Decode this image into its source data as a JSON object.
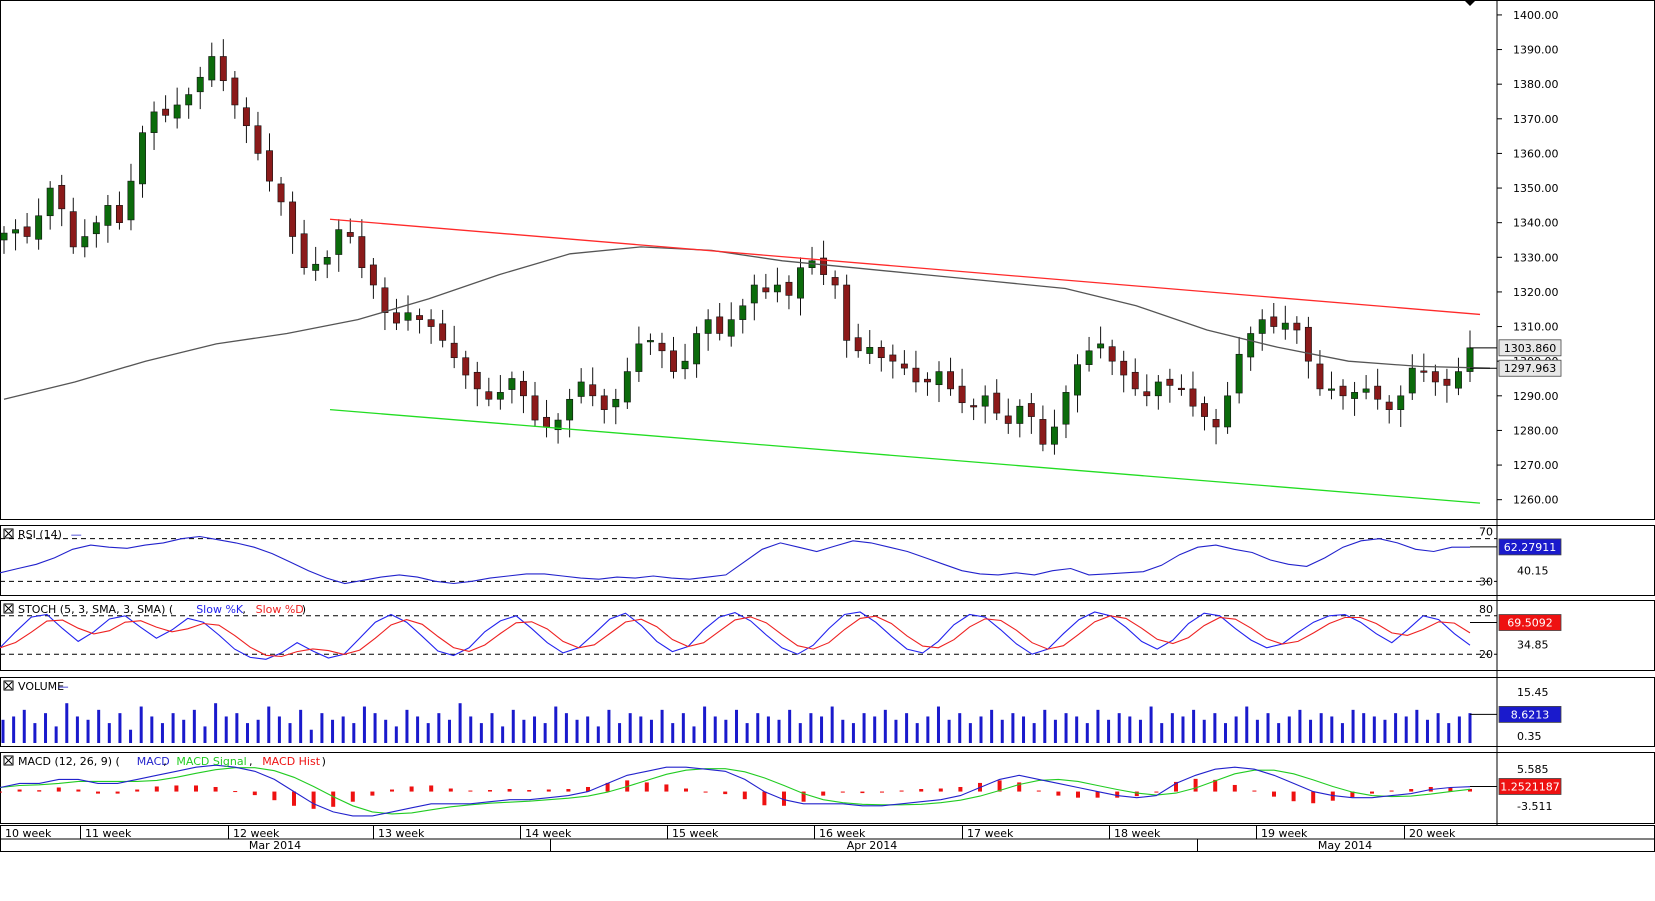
{
  "colors": {
    "bull": "#0b6b0b",
    "bear": "#8b1a1a",
    "upper_channel": "#ff2a2a",
    "lower_channel": "#22dd22",
    "sma": "#555555",
    "rsi": "#2222cc",
    "stoch_k": "#2222ee",
    "stoch_d": "#ee2222",
    "volume": "#1a1acc",
    "macd_line": "#2222cc",
    "macd_signal": "#22cc22",
    "macd_hist": "#ee1111",
    "badge_bg": "#e8e8e8",
    "badge_red": "#ee1111"
  },
  "chart_data": {
    "type": "candlestick",
    "title": "",
    "x_period_labels": [
      "10 week",
      "11 week",
      "12 week",
      "13 week",
      "14 week",
      "15 week",
      "16 week",
      "17 week",
      "18 week",
      "19 week",
      "20 week"
    ],
    "month_labels": [
      "Mar 2014",
      "Apr 2014",
      "May 2014"
    ],
    "price_axis": {
      "ylim": [
        1255,
        1402
      ],
      "ticks": [
        "1400.00",
        "1390.00",
        "1380.00",
        "1370.00",
        "1360.00",
        "1350.00",
        "1340.00",
        "1330.00",
        "1320.00",
        "1310.00",
        "1300.00",
        "1290.00",
        "1280.00",
        "1270.00",
        "1260.00"
      ],
      "last_price_label": "1303.860",
      "sma_value_label": "1297.963"
    },
    "close_series": [
      1337,
      1338,
      1336,
      1342,
      1350,
      1344,
      1333,
      1336,
      1340,
      1345,
      1340,
      1352,
      1366,
      1372,
      1371,
      1374,
      1377,
      1382,
      1388,
      1381,
      1374,
      1368,
      1360,
      1352,
      1346,
      1336,
      1327,
      1328,
      1330,
      1338,
      1336,
      1327,
      1322,
      1314,
      1311,
      1314,
      1312,
      1310,
      1306,
      1301,
      1296,
      1292,
      1289,
      1291,
      1295,
      1290,
      1283,
      1281,
      1283,
      1289,
      1294,
      1290,
      1286,
      1289,
      1297,
      1305,
      1306,
      1303,
      1297,
      1300,
      1308,
      1312,
      1308,
      1312,
      1316,
      1322,
      1320,
      1322,
      1319,
      1327,
      1329,
      1325,
      1322,
      1306,
      1303,
      1304,
      1301,
      1300,
      1298,
      1294,
      1294,
      1297,
      1292,
      1288,
      1287,
      1290,
      1285,
      1282,
      1287,
      1284,
      1276,
      1281,
      1291,
      1299,
      1303,
      1305,
      1300,
      1296,
      1292,
      1290,
      1294,
      1293,
      1292,
      1287,
      1284,
      1281,
      1290,
      1302,
      1308,
      1312,
      1310,
      1311,
      1309,
      1300,
      1292,
      1292,
      1290,
      1291,
      1292,
      1289,
      1286,
      1290,
      1298,
      1297,
      1294,
      1293,
      1297,
      1303.86
    ],
    "sma_series": [
      1289,
      1294,
      1300,
      1305,
      1308,
      1312,
      1318,
      1325,
      1331,
      1333,
      1332,
      1329,
      1327,
      1325,
      1323,
      1321,
      1316,
      1309,
      1304,
      1300,
      1298.5,
      1297.963
    ],
    "upper_channel": [
      [
        0.11,
        1341
      ],
      [
        0.96,
        1313.5
      ]
    ],
    "lower_channel": [
      [
        0.11,
        1286
      ],
      [
        0.96,
        1259
      ]
    ],
    "indicators": {
      "rsi": {
        "label": "RSI (14)",
        "levels": [
          "70",
          "30"
        ],
        "level_values": [
          70,
          30
        ],
        "ylim": [
          20,
          80
        ],
        "extra_tick": "40.15",
        "value_label": "62.27911",
        "values": [
          38,
          42,
          46,
          52,
          60,
          64,
          62,
          61,
          64,
          66,
          70,
          72,
          69,
          66,
          62,
          56,
          48,
          40,
          33,
          28,
          31,
          34,
          36,
          34,
          30,
          28,
          30,
          33,
          35,
          37,
          37,
          35,
          33,
          32,
          34,
          33,
          35,
          33,
          32,
          34,
          36,
          48,
          60,
          66,
          62,
          58,
          63,
          68,
          66,
          62,
          58,
          52,
          46,
          40,
          37,
          36,
          38,
          36,
          40,
          42,
          36,
          37,
          38,
          39,
          45,
          55,
          62,
          64,
          60,
          57,
          50,
          46,
          44,
          52,
          62,
          68,
          70,
          66,
          60,
          58,
          62,
          62
        ]
      },
      "stoch": {
        "label": "STOCH (5, 3, SMA, 3, SMA)",
        "legend_k": "Slow %K",
        "legend_d": "Slow %D",
        "levels": [
          "80",
          "20"
        ],
        "level_values": [
          80,
          20
        ],
        "ylim": [
          0,
          100
        ],
        "extra_tick": "34.85",
        "value_label": "69.5092",
        "k_values": [
          30,
          55,
          78,
          82,
          60,
          40,
          55,
          75,
          80,
          62,
          45,
          58,
          76,
          70,
          50,
          28,
          15,
          12,
          22,
          38,
          25,
          14,
          20,
          45,
          70,
          82,
          70,
          48,
          25,
          18,
          30,
          55,
          72,
          80,
          60,
          38,
          22,
          30,
          52,
          75,
          84,
          65,
          40,
          24,
          32,
          58,
          78,
          85,
          72,
          50,
          30,
          20,
          34,
          60,
          82,
          86,
          70,
          48,
          28,
          22,
          40,
          66,
          82,
          78,
          58,
          36,
          20,
          28,
          52,
          74,
          86,
          80,
          62,
          40,
          28,
          42,
          68,
          84,
          80,
          60,
          42,
          30,
          36,
          54,
          70,
          80,
          82,
          70,
          52,
          38,
          58,
          80,
          74,
          52,
          34
        ]
      },
      "volume": {
        "label": "VOLUME",
        "ticks": [
          "15.45",
          "0.35"
        ],
        "ylim": [
          0,
          19
        ],
        "value_label": "8.6213",
        "values": [
          7,
          8,
          10,
          6,
          9,
          5,
          12,
          8,
          7,
          10,
          6,
          9,
          4,
          11,
          8,
          6,
          9,
          7,
          10,
          5,
          12,
          8,
          9,
          6,
          7,
          11,
          8,
          6,
          10,
          4,
          9,
          7,
          8,
          6,
          11,
          9,
          7,
          5,
          10,
          8,
          6,
          9,
          7,
          12,
          8,
          6,
          9,
          5,
          10,
          7,
          8,
          6,
          11,
          9,
          7,
          8,
          5,
          10,
          6,
          9,
          8,
          7,
          10,
          6,
          9,
          5,
          11,
          8,
          7,
          10,
          6,
          9,
          8,
          7,
          10,
          6,
          9,
          8,
          11,
          7,
          6,
          9,
          8,
          10,
          7,
          9,
          6,
          8,
          11,
          7,
          9,
          6,
          8,
          10,
          7,
          9,
          8,
          6,
          10,
          7,
          9,
          8,
          6,
          10,
          7,
          9,
          8,
          7,
          11,
          6,
          9,
          8,
          10,
          7,
          9,
          6,
          8,
          11,
          7,
          9,
          6,
          8,
          10,
          7,
          9,
          8,
          6,
          10,
          9,
          8,
          7,
          9,
          8,
          10,
          7,
          9,
          6,
          8,
          9
        ]
      },
      "macd": {
        "label": "MACD (12, 26, 9)",
        "legend_macd": "MACD",
        "legend_signal": "MACD Signal",
        "legend_hist": "MACD Hist",
        "ticks": [
          "5.585",
          "-3.511"
        ],
        "ylim": [
          -7,
          9
        ],
        "value_label": "1.2521187",
        "macd_values": [
          1,
          2,
          2,
          3,
          3,
          2,
          2,
          3,
          4,
          5,
          6,
          6.5,
          6,
          5,
          3,
          0,
          -3,
          -5,
          -6,
          -6,
          -5,
          -4,
          -3,
          -3,
          -3,
          -2.5,
          -2,
          -2,
          -1.5,
          -1,
          0,
          2,
          4,
          5,
          6,
          6,
          5.5,
          5,
          3,
          0,
          -2,
          -3,
          -3,
          -3,
          -3.5,
          -3.5,
          -3,
          -2.5,
          -2,
          -1,
          1,
          3,
          4,
          3,
          2,
          1,
          0,
          -1,
          -1.5,
          -1,
          2,
          4,
          5.5,
          6,
          5.5,
          4,
          2,
          0,
          -1,
          -1.5,
          -1.5,
          -1,
          -0.5,
          0.5,
          1,
          1.2
        ]
      }
    }
  }
}
